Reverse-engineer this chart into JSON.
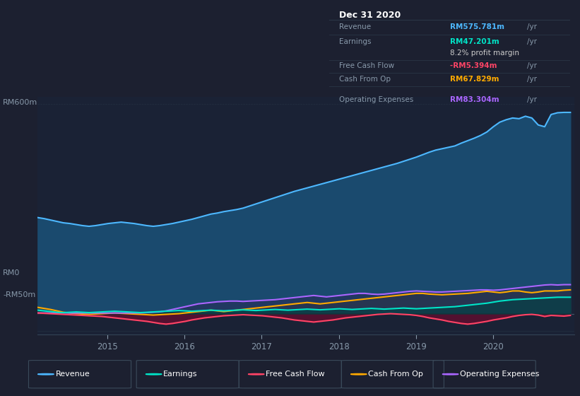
{
  "bg_color": "#1c2030",
  "plot_bg_color": "#1a2235",
  "text_color": "#8899aa",
  "xlabel_ticks": [
    "2015",
    "2016",
    "2017",
    "2018",
    "2019",
    "2020"
  ],
  "ylabel_600": "RM600m",
  "ylabel_0": "RM0",
  "ylabel_neg50": "-RM50m",
  "info_box": {
    "date": "Dec 31 2020",
    "revenue_label": "Revenue",
    "revenue_value": "RM575.781m",
    "revenue_color": "#4db8ff",
    "earnings_label": "Earnings",
    "earnings_value": "RM47.201m",
    "earnings_color": "#00e5c8",
    "margin_text": "8.2% profit margin",
    "margin_color": "#cccccc",
    "fcf_label": "Free Cash Flow",
    "fcf_value": "-RM5.394m",
    "fcf_color": "#ff4466",
    "cashop_label": "Cash From Op",
    "cashop_value": "RM67.829m",
    "cashop_color": "#ffaa00",
    "opex_label": "Operating Expenses",
    "opex_value": "RM83.304m",
    "opex_color": "#aa66ff"
  },
  "legend": [
    {
      "label": "Revenue",
      "color": "#4db8ff"
    },
    {
      "label": "Earnings",
      "color": "#00e5c8"
    },
    {
      "label": "Free Cash Flow",
      "color": "#ff4466"
    },
    {
      "label": "Cash From Op",
      "color": "#ffaa00"
    },
    {
      "label": "Operating Expenses",
      "color": "#aa66ff"
    }
  ],
  "revenue": [
    275,
    272,
    268,
    264,
    260,
    258,
    255,
    252,
    250,
    252,
    255,
    258,
    260,
    262,
    260,
    258,
    255,
    252,
    250,
    252,
    255,
    258,
    262,
    266,
    270,
    275,
    280,
    285,
    288,
    292,
    295,
    298,
    302,
    308,
    314,
    320,
    326,
    332,
    338,
    344,
    350,
    355,
    360,
    365,
    370,
    375,
    380,
    385,
    390,
    395,
    400,
    405,
    410,
    415,
    420,
    425,
    430,
    436,
    442,
    448,
    455,
    462,
    468,
    472,
    476,
    480,
    488,
    495,
    502,
    510,
    520,
    535,
    548,
    555,
    560,
    558,
    565,
    560,
    540,
    535,
    570,
    575,
    576,
    576
  ],
  "earnings": [
    10,
    8,
    6,
    4,
    3,
    4,
    5,
    4,
    3,
    4,
    5,
    6,
    7,
    6,
    5,
    4,
    3,
    4,
    5,
    6,
    7,
    8,
    9,
    8,
    7,
    8,
    9,
    10,
    9,
    8,
    9,
    10,
    11,
    10,
    9,
    10,
    11,
    12,
    11,
    10,
    11,
    12,
    13,
    12,
    11,
    12,
    13,
    14,
    13,
    12,
    13,
    14,
    15,
    14,
    13,
    14,
    15,
    16,
    15,
    14,
    15,
    16,
    17,
    18,
    19,
    20,
    22,
    24,
    26,
    28,
    30,
    33,
    36,
    38,
    40,
    41,
    42,
    43,
    44,
    45,
    46,
    47,
    47,
    47
  ],
  "fcf": [
    2,
    1,
    0,
    -1,
    -2,
    -3,
    -4,
    -5,
    -6,
    -7,
    -8,
    -10,
    -12,
    -14,
    -16,
    -18,
    -20,
    -22,
    -25,
    -28,
    -30,
    -28,
    -25,
    -22,
    -18,
    -15,
    -12,
    -10,
    -8,
    -6,
    -5,
    -4,
    -3,
    -4,
    -5,
    -6,
    -8,
    -10,
    -12,
    -15,
    -18,
    -20,
    -22,
    -24,
    -22,
    -20,
    -18,
    -15,
    -12,
    -10,
    -8,
    -6,
    -4,
    -2,
    -1,
    0,
    -1,
    -2,
    -3,
    -5,
    -8,
    -12,
    -15,
    -18,
    -22,
    -25,
    -28,
    -30,
    -28,
    -25,
    -22,
    -18,
    -15,
    -12,
    -8,
    -5,
    -3,
    -2,
    -4,
    -8,
    -5,
    -6,
    -7,
    -5
  ],
  "cashop": [
    18,
    15,
    12,
    8,
    4,
    2,
    0,
    -1,
    -2,
    -1,
    0,
    1,
    2,
    1,
    0,
    -1,
    -2,
    -3,
    -4,
    -3,
    -2,
    -1,
    0,
    2,
    4,
    6,
    8,
    10,
    8,
    6,
    8,
    10,
    12,
    14,
    16,
    18,
    20,
    22,
    24,
    26,
    28,
    30,
    32,
    30,
    28,
    30,
    32,
    34,
    36,
    38,
    40,
    42,
    44,
    46,
    48,
    50,
    52,
    54,
    56,
    58,
    58,
    56,
    55,
    54,
    55,
    56,
    57,
    58,
    60,
    62,
    64,
    62,
    60,
    62,
    65,
    65,
    62,
    60,
    62,
    65,
    65,
    65,
    67,
    68
  ],
  "opex": [
    2,
    2,
    2,
    2,
    2,
    2,
    2,
    2,
    2,
    2,
    2,
    2,
    2,
    2,
    2,
    2,
    2,
    3,
    4,
    5,
    8,
    12,
    16,
    20,
    24,
    28,
    30,
    32,
    34,
    35,
    36,
    36,
    35,
    36,
    37,
    38,
    39,
    40,
    42,
    44,
    46,
    48,
    50,
    52,
    50,
    48,
    50,
    52,
    54,
    56,
    58,
    58,
    56,
    55,
    56,
    58,
    60,
    62,
    64,
    65,
    64,
    63,
    62,
    62,
    63,
    64,
    65,
    66,
    67,
    68,
    68,
    67,
    68,
    70,
    72,
    74,
    76,
    78,
    80,
    82,
    83,
    82,
    83,
    83
  ]
}
